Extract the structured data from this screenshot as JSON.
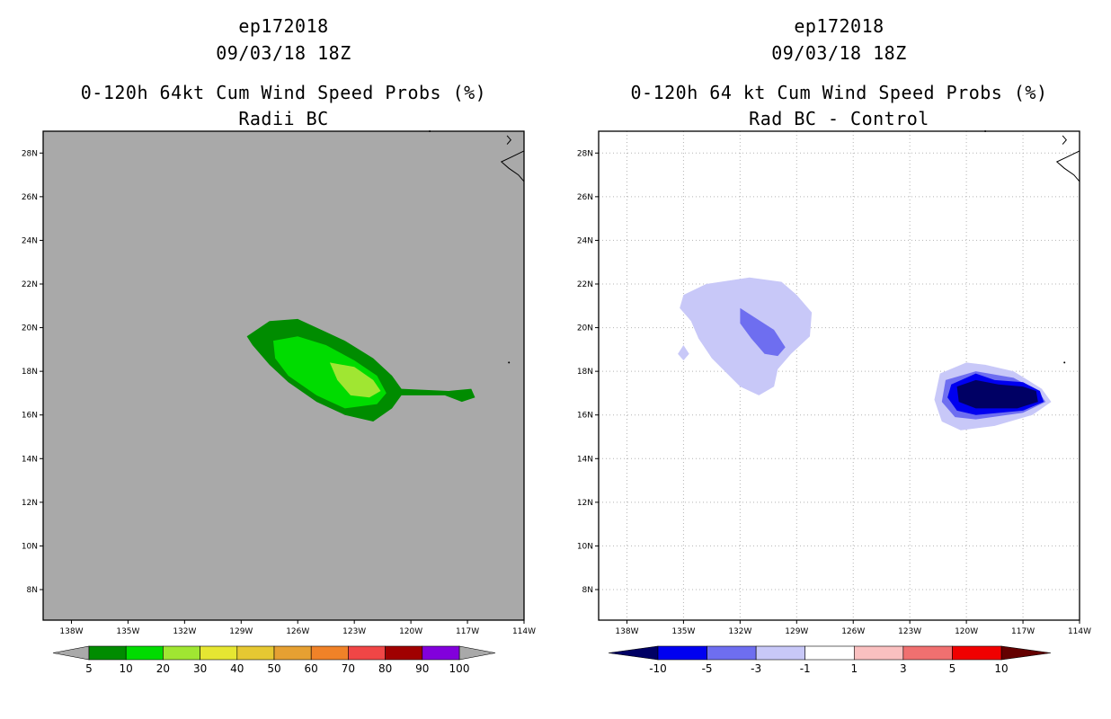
{
  "left_panel": {
    "title_lines": [
      "ep172018",
      "09/03/18 18Z",
      "0-120h 64kt Cum Wind Speed Probs (%)",
      "Radii BC"
    ],
    "background": "#a9a9a9",
    "lon_ticks": [
      "138W",
      "135W",
      "132W",
      "129W",
      "126W",
      "123W",
      "120W",
      "117W",
      "114W"
    ],
    "lat_ticks": [
      "28N",
      "26N",
      "24N",
      "22N",
      "20N",
      "18N",
      "16N",
      "14N",
      "12N",
      "10N",
      "8N"
    ],
    "colorbar": {
      "labels": [
        "5",
        "10",
        "20",
        "30",
        "40",
        "50",
        "60",
        "70",
        "80",
        "90",
        "100"
      ],
      "colors": [
        "#008c00",
        "#00dc00",
        "#a0e632",
        "#e6e632",
        "#e6c832",
        "#e6a032",
        "#f08228",
        "#f04646",
        "#a00000",
        "#8200dc"
      ],
      "low_arrow_color": "#a9a9a9",
      "high_arrow_color": "#a9a9a9"
    }
  },
  "right_panel": {
    "title_lines": [
      "ep172018",
      "09/03/18 18Z",
      "0-120h 64 kt Cum Wind Speed Probs (%)",
      "Rad BC - Control"
    ],
    "background": "#ffffff",
    "lon_ticks": [
      "138W",
      "135W",
      "132W",
      "129W",
      "126W",
      "123W",
      "120W",
      "117W",
      "114W"
    ],
    "lat_ticks": [
      "28N",
      "26N",
      "24N",
      "22N",
      "20N",
      "18N",
      "16N",
      "14N",
      "12N",
      "10N",
      "8N"
    ],
    "colorbar": {
      "labels": [
        "-10",
        "-5",
        "-3",
        "-1",
        "1",
        "3",
        "5",
        "10"
      ],
      "colors": [
        "#0000f0",
        "#6e6ef0",
        "#c8c8f8",
        "#ffffff",
        "#fac0c0",
        "#f07070",
        "#f00000"
      ],
      "low_arrow_color": "#000064",
      "high_arrow_color": "#640000"
    }
  },
  "chart_data": [
    {
      "type": "contour-map",
      "title": "0-120h 64kt Cum Wind Speed Probs (%)",
      "subtitle": "Radii BC",
      "storm": "ep172018",
      "init_time": "09/03/18 18Z",
      "lon_range": [
        -139.5,
        -114.0
      ],
      "lat_range": [
        6.6,
        29.0
      ],
      "contour_levels": [
        5,
        10,
        20,
        30,
        40,
        50,
        60,
        70,
        80,
        90,
        100
      ],
      "regions": [
        {
          "level": 5,
          "color": "#008c00",
          "points": [
            [
              -128.7,
              19.6
            ],
            [
              -127.5,
              20.3
            ],
            [
              -126.0,
              20.4
            ],
            [
              -124.5,
              19.8
            ],
            [
              -123.5,
              19.4
            ],
            [
              -122.0,
              18.6
            ],
            [
              -121.0,
              17.8
            ],
            [
              -120.5,
              17.2
            ],
            [
              -118.0,
              17.1
            ],
            [
              -116.8,
              17.2
            ],
            [
              -116.6,
              16.8
            ],
            [
              -117.3,
              16.6
            ],
            [
              -118.2,
              16.9
            ],
            [
              -120.5,
              16.9
            ],
            [
              -121.0,
              16.3
            ],
            [
              -122.0,
              15.7
            ],
            [
              -123.5,
              16.0
            ],
            [
              -125.0,
              16.6
            ],
            [
              -126.5,
              17.5
            ],
            [
              -127.5,
              18.3
            ],
            [
              -128.4,
              19.2
            ]
          ]
        },
        {
          "level": 10,
          "color": "#00dc00",
          "points": [
            [
              -127.3,
              19.4
            ],
            [
              -126.0,
              19.6
            ],
            [
              -124.5,
              19.2
            ],
            [
              -123.0,
              18.5
            ],
            [
              -121.8,
              17.8
            ],
            [
              -121.3,
              17.0
            ],
            [
              -121.8,
              16.5
            ],
            [
              -123.5,
              16.3
            ],
            [
              -125.0,
              16.9
            ],
            [
              -126.5,
              17.8
            ],
            [
              -127.2,
              18.6
            ]
          ]
        },
        {
          "level": 20,
          "color": "#a0e632",
          "points": [
            [
              -124.3,
              18.4
            ],
            [
              -123.0,
              18.2
            ],
            [
              -122.0,
              17.6
            ],
            [
              -121.6,
              17.1
            ],
            [
              -122.2,
              16.8
            ],
            [
              -123.2,
              16.9
            ],
            [
              -123.9,
              17.6
            ]
          ]
        }
      ]
    },
    {
      "type": "contour-map",
      "title": "0-120h 64 kt Cum Wind Speed Probs (%)",
      "subtitle": "Rad BC - Control",
      "storm": "ep172018",
      "init_time": "09/03/18 18Z",
      "lon_range": [
        -139.5,
        -114.0
      ],
      "lat_range": [
        6.6,
        29.0
      ],
      "contour_levels": [
        -10,
        -5,
        -3,
        -1,
        1,
        3,
        5,
        10
      ],
      "regions": [
        {
          "level": -1,
          "color": "#c8c8f8",
          "points": [
            [
              -135.0,
              21.5
            ],
            [
              -133.8,
              22.0
            ],
            [
              -131.5,
              22.3
            ],
            [
              -129.8,
              22.1
            ],
            [
              -129.0,
              21.5
            ],
            [
              -128.2,
              20.7
            ],
            [
              -128.3,
              19.6
            ],
            [
              -129.3,
              18.8
            ],
            [
              -130.0,
              18.1
            ],
            [
              -130.2,
              17.3
            ],
            [
              -131.0,
              16.9
            ],
            [
              -132.0,
              17.3
            ],
            [
              -133.5,
              18.6
            ],
            [
              -134.2,
              19.5
            ],
            [
              -134.6,
              20.3
            ],
            [
              -135.2,
              20.9
            ]
          ]
        },
        {
          "level": -1,
          "color": "#c8c8f8",
          "points": [
            [
              -135.0,
              19.2
            ],
            [
              -134.7,
              18.8
            ],
            [
              -135.0,
              18.5
            ],
            [
              -135.3,
              18.8
            ]
          ]
        },
        {
          "level": -3,
          "color": "#6e6ef0",
          "points": [
            [
              -132.0,
              20.9
            ],
            [
              -131.1,
              20.4
            ],
            [
              -130.2,
              19.9
            ],
            [
              -129.6,
              19.1
            ],
            [
              -130.0,
              18.7
            ],
            [
              -130.7,
              18.8
            ],
            [
              -131.4,
              19.5
            ],
            [
              -132.0,
              20.2
            ]
          ]
        },
        {
          "level": -1,
          "color": "#c8c8f8",
          "points": [
            [
              -121.4,
              17.9
            ],
            [
              -120.0,
              18.4
            ],
            [
              -119.0,
              18.3
            ],
            [
              -117.5,
              18.0
            ],
            [
              -116.0,
              17.2
            ],
            [
              -115.5,
              16.6
            ],
            [
              -116.5,
              16.0
            ],
            [
              -118.5,
              15.5
            ],
            [
              -120.3,
              15.3
            ],
            [
              -121.3,
              15.7
            ],
            [
              -121.7,
              16.7
            ]
          ]
        },
        {
          "level": -3,
          "color": "#6e6ef0",
          "points": [
            [
              -121.1,
              17.6
            ],
            [
              -119.5,
              18.0
            ],
            [
              -117.5,
              17.7
            ],
            [
              -116.2,
              17.1
            ],
            [
              -115.8,
              16.6
            ],
            [
              -117.0,
              16.1
            ],
            [
              -119.5,
              15.8
            ],
            [
              -120.6,
              15.9
            ],
            [
              -121.3,
              16.6
            ]
          ]
        },
        {
          "level": -5,
          "color": "#0000f0",
          "points": [
            [
              -120.8,
              17.4
            ],
            [
              -119.5,
              17.9
            ],
            [
              -118.5,
              17.6
            ],
            [
              -117.0,
              17.5
            ],
            [
              -116.1,
              17.1
            ],
            [
              -115.9,
              16.6
            ],
            [
              -117.0,
              16.2
            ],
            [
              -119.5,
              16.0
            ],
            [
              -120.5,
              16.2
            ],
            [
              -121.0,
              16.8
            ]
          ]
        },
        {
          "level": -10,
          "color": "#000064",
          "points": [
            [
              -120.5,
              17.3
            ],
            [
              -119.5,
              17.6
            ],
            [
              -118.3,
              17.4
            ],
            [
              -117.0,
              17.3
            ],
            [
              -116.3,
              17.1
            ],
            [
              -116.2,
              16.6
            ],
            [
              -117.3,
              16.3
            ],
            [
              -119.5,
              16.3
            ],
            [
              -120.4,
              16.6
            ]
          ]
        }
      ]
    }
  ]
}
